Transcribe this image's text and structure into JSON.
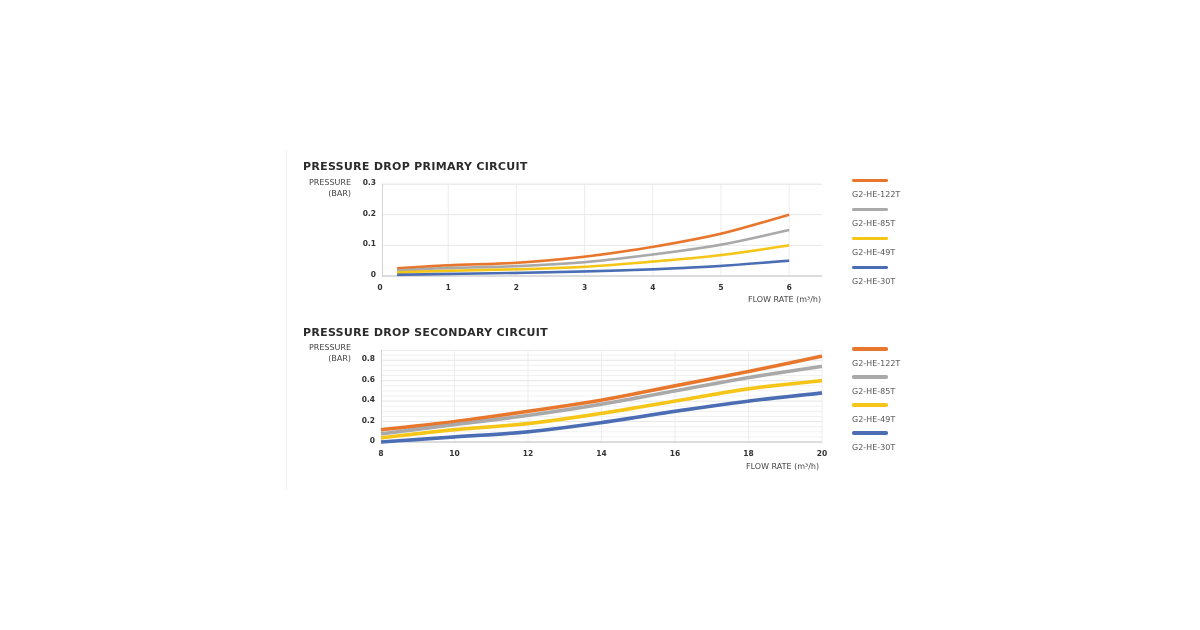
{
  "chart_data": [
    {
      "type": "line",
      "title": "PRESSURE DROP PRIMARY CIRCUIT",
      "ylabel_line1": "PRESSURE",
      "ylabel_line2": "(BAR)",
      "xlabel": "FLOW RATE (m³/h)",
      "xlim": [
        0,
        6.5
      ],
      "ylim": [
        0,
        0.3
      ],
      "x_ticks": [
        0,
        1,
        2,
        3,
        4,
        5,
        6
      ],
      "x_tick_labels": [
        "0",
        "1",
        "2",
        "3",
        "4",
        "5",
        "6"
      ],
      "y_ticks": [
        0,
        0.1,
        0.2,
        0.3
      ],
      "y_tick_labels": [
        "0",
        "0.1",
        "0.2",
        "0.3"
      ],
      "y_minor_step": null,
      "grid": true,
      "legend_position": "right",
      "x": [
        0.25,
        1,
        2,
        3,
        4,
        5,
        6
      ],
      "series": [
        {
          "name": "G2-HE-122T",
          "color": "#E8772E",
          "values": [
            0.025,
            0.035,
            0.043,
            0.063,
            0.095,
            0.138,
            0.2
          ]
        },
        {
          "name": "G2-HE-85T",
          "color": "#A9A9A9",
          "values": [
            0.018,
            0.026,
            0.032,
            0.045,
            0.07,
            0.102,
            0.15
          ]
        },
        {
          "name": "G2-HE-49T",
          "color": "#F5C518",
          "values": [
            0.012,
            0.017,
            0.022,
            0.03,
            0.047,
            0.068,
            0.1
          ]
        },
        {
          "name": "G2-HE-30T",
          "color": "#4A6DB3",
          "values": [
            0.004,
            0.007,
            0.01,
            0.015,
            0.022,
            0.033,
            0.05
          ]
        }
      ]
    },
    {
      "type": "line",
      "title": "PRESSURE DROP SECONDARY CIRCUIT",
      "ylabel_line1": "PRESSURE",
      "ylabel_line2": "(BAR)",
      "xlabel": "FLOW RATE (m³/h)",
      "xlim": [
        8,
        20
      ],
      "ylim": [
        0,
        0.9
      ],
      "x_ticks": [
        8,
        10,
        12,
        14,
        16,
        18,
        20
      ],
      "x_tick_labels": [
        "8",
        "10",
        "12",
        "14",
        "16",
        "18",
        "20"
      ],
      "y_ticks": [
        0,
        0.2,
        0.4,
        0.6,
        0.8
      ],
      "y_tick_labels": [
        "0",
        "0.2",
        "0.4",
        "0.6",
        "0.8"
      ],
      "y_minor_step": 0.1,
      "grid": true,
      "legend_position": "right",
      "x": [
        8,
        10,
        12,
        14,
        16,
        18,
        20
      ],
      "series": [
        {
          "name": "G2-HE-122T",
          "color": "#E8772E",
          "values": [
            0.12,
            0.2,
            0.3,
            0.41,
            0.55,
            0.69,
            0.84
          ]
        },
        {
          "name": "G2-HE-85T",
          "color": "#A9A9A9",
          "values": [
            0.08,
            0.17,
            0.26,
            0.37,
            0.5,
            0.63,
            0.74
          ]
        },
        {
          "name": "G2-HE-49T",
          "color": "#F5C518",
          "values": [
            0.04,
            0.12,
            0.18,
            0.28,
            0.4,
            0.52,
            0.6
          ]
        },
        {
          "name": "G2-HE-30T",
          "color": "#4A6DB3",
          "values": [
            0.0,
            0.05,
            0.1,
            0.19,
            0.3,
            0.4,
            0.48
          ]
        }
      ]
    }
  ]
}
